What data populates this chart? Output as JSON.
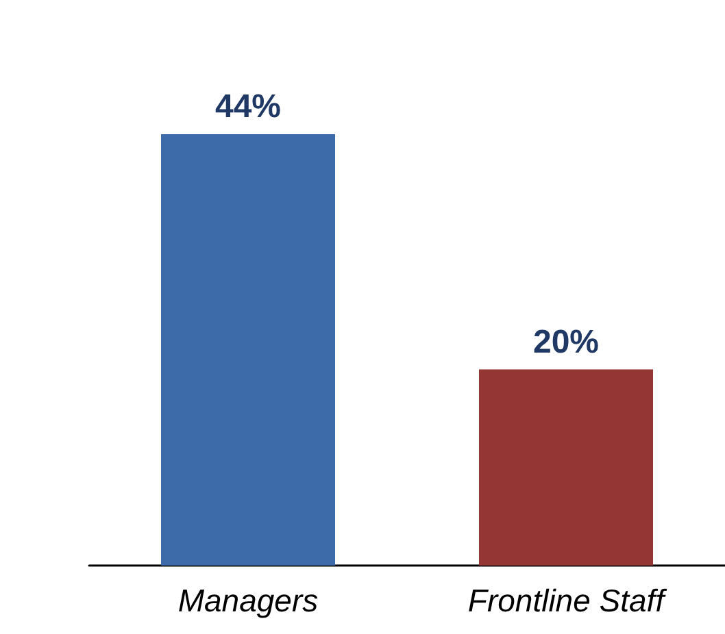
{
  "chart_data": {
    "type": "bar",
    "categories": [
      "Managers",
      "Frontline Staff"
    ],
    "values": [
      44,
      20
    ],
    "colors": [
      "#3d6aa8",
      "#943634"
    ],
    "value_labels": [
      "44%",
      "20%"
    ]
  }
}
